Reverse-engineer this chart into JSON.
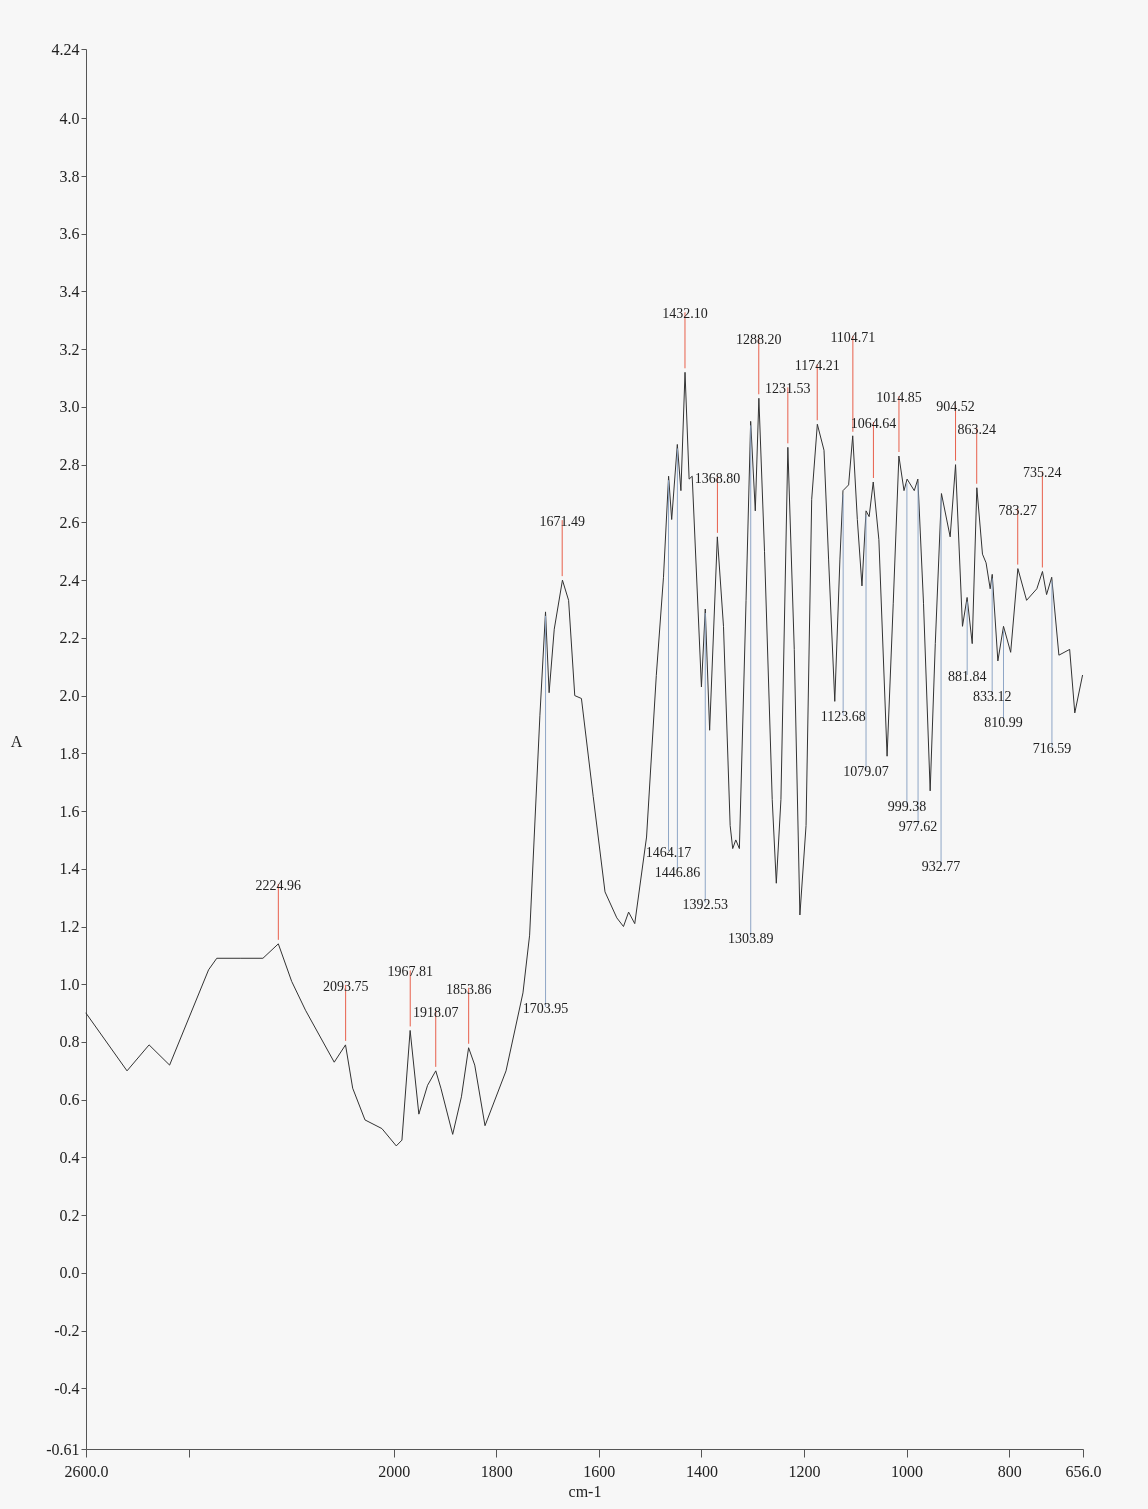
{
  "chart_data": {
    "type": "line",
    "xlabel": "cm-1",
    "ylabel": "A",
    "color": "#333333",
    "x": [
      2600,
      2520,
      2477,
      2437,
      2361,
      2345,
      2298,
      2255,
      2225,
      2199,
      2172,
      2116,
      2094,
      2080,
      2056,
      2023,
      1995,
      1984,
      1968,
      1951,
      1934,
      1918,
      1908,
      1885,
      1868,
      1854,
      1842,
      1822,
      1781,
      1748,
      1735,
      1715,
      1704,
      1697,
      1687,
      1671,
      1659,
      1647,
      1634,
      1611,
      1588,
      1565,
      1552,
      1542,
      1530,
      1507,
      1488,
      1474,
      1464,
      1458,
      1447,
      1440,
      1432,
      1424,
      1418,
      1400,
      1392.5,
      1384,
      1369,
      1357,
      1344,
      1339,
      1333,
      1326,
      1313,
      1304,
      1295,
      1288,
      1277,
      1262,
      1254,
      1245,
      1231.5,
      1219,
      1208,
      1196,
      1185,
      1174,
      1161,
      1152,
      1140,
      1130,
      1124,
      1113,
      1105,
      1096,
      1087,
      1079,
      1073,
      1065,
      1054,
      1038,
      1026,
      1015,
      1005,
      999,
      985,
      978,
      967,
      954,
      944,
      932,
      915,
      904.5,
      891,
      882,
      872,
      863,
      852,
      845,
      837,
      833,
      822,
      811,
      797,
      783,
      766,
      746,
      735,
      727,
      717,
      703,
      682,
      672,
      657
    ],
    "values": [
      0.9,
      0.7,
      0.79,
      0.72,
      1.05,
      1.09,
      1.09,
      1.09,
      1.14,
      1.01,
      0.91,
      0.73,
      0.79,
      0.64,
      0.53,
      0.5,
      0.44,
      0.46,
      0.84,
      0.55,
      0.65,
      0.7,
      0.64,
      0.48,
      0.61,
      0.78,
      0.72,
      0.51,
      0.7,
      0.97,
      1.17,
      1.93,
      2.29,
      2.01,
      2.23,
      2.4,
      2.33,
      2.0,
      1.99,
      1.65,
      1.32,
      1.23,
      1.2,
      1.25,
      1.21,
      1.51,
      2.07,
      2.41,
      2.76,
      2.61,
      2.87,
      2.71,
      3.12,
      2.75,
      2.76,
      2.03,
      2.3,
      1.88,
      2.55,
      2.24,
      1.55,
      1.47,
      1.5,
      1.47,
      2.33,
      2.95,
      2.64,
      3.03,
      2.5,
      1.64,
      1.35,
      1.64,
      2.86,
      2.16,
      1.24,
      1.55,
      2.68,
      2.94,
      2.85,
      2.47,
      1.98,
      2.47,
      2.71,
      2.73,
      2.9,
      2.61,
      2.38,
      2.64,
      2.62,
      2.74,
      2.54,
      1.79,
      2.32,
      2.83,
      2.71,
      2.75,
      2.71,
      2.75,
      2.32,
      1.67,
      2.18,
      2.7,
      2.55,
      2.8,
      2.24,
      2.34,
      2.18,
      2.72,
      2.49,
      2.46,
      2.37,
      2.42,
      2.12,
      2.24,
      2.15,
      2.44,
      2.33,
      2.37,
      2.43,
      2.35,
      2.41,
      2.14,
      2.16,
      1.94,
      2.07
    ],
    "xlim": [
      2600,
      656
    ],
    "ylim": [
      -0.61,
      4.24
    ],
    "xticks": [
      {
        "value": 2600,
        "label": "2600.0"
      },
      {
        "value": 2400,
        "label": null
      },
      2000,
      1800,
      1600,
      1400,
      1200,
      1000,
      800,
      {
        "value": 656,
        "label": "656.0"
      }
    ],
    "yticks": [
      {
        "value": -0.61,
        "label": "-0.61"
      },
      {
        "value": -0.4,
        "label": "-0.4"
      },
      {
        "value": -0.2,
        "label": "-0.2"
      },
      {
        "value": 0,
        "label": "0.0"
      },
      {
        "value": 0.2,
        "label": "0.2"
      },
      {
        "value": 0.4,
        "label": "0.4"
      },
      {
        "value": 0.6,
        "label": "0.6"
      },
      {
        "value": 0.8,
        "label": "0.8"
      },
      {
        "value": 1,
        "label": "1.0"
      },
      {
        "value": 1.2,
        "label": "1.2"
      },
      {
        "value": 1.4,
        "label": "1.4"
      },
      {
        "value": 1.6,
        "label": "1.6"
      },
      {
        "value": 1.8,
        "label": "1.8"
      },
      {
        "value": 2,
        "label": "2.0"
      },
      {
        "value": 2.2,
        "label": "2.2"
      },
      {
        "value": 2.4,
        "label": "2.4"
      },
      {
        "value": 2.6,
        "label": "2.6"
      },
      {
        "value": 2.8,
        "label": "2.8"
      },
      {
        "value": 3,
        "label": "3.0"
      },
      {
        "value": 3.2,
        "label": "3.2"
      },
      {
        "value": 3.4,
        "label": "3.4"
      },
      {
        "value": 3.6,
        "label": "3.6"
      },
      {
        "value": 3.8,
        "label": "3.8"
      },
      {
        "value": 4,
        "label": "4.0"
      },
      {
        "value": 4.24,
        "label": "4.24"
      }
    ],
    "annotations": [
      {
        "text": "2224.96",
        "x": 2224.96,
        "y": 1.14
      },
      {
        "text": "2093.75",
        "x": 2093.75,
        "y": 0.79
      },
      {
        "text": "1967.81",
        "x": 1967.81,
        "y": 0.84
      },
      {
        "text": "1918.07",
        "x": 1918.07,
        "y": 0.7
      },
      {
        "text": "1853.86",
        "x": 1853.86,
        "y": 0.78
      },
      {
        "text": "1703.95",
        "x": 1703.95,
        "y": 2.29
      },
      {
        "text": "1671.49",
        "x": 1671.49,
        "y": 2.4
      },
      {
        "text": "1464.17",
        "x": 1464.17,
        "y": 2.76
      },
      {
        "text": "1446.86",
        "x": 1446.86,
        "y": 2.87
      },
      {
        "text": "1432.10",
        "x": 1432.1,
        "y": 3.12
      },
      {
        "text": "1392.53",
        "x": 1392.53,
        "y": 2.3
      },
      {
        "text": "1368.80",
        "x": 1368.8,
        "y": 2.55
      },
      {
        "text": "1303.89",
        "x": 1303.89,
        "y": 2.95
      },
      {
        "text": "1288.20",
        "x": 1288.2,
        "y": 3.03
      },
      {
        "text": "1231.53",
        "x": 1231.53,
        "y": 2.86
      },
      {
        "text": "1174.21",
        "x": 1174.21,
        "y": 2.94
      },
      {
        "text": "1123.68",
        "x": 1123.68,
        "y": 2.71
      },
      {
        "text": "1104.71",
        "x": 1104.71,
        "y": 2.9
      },
      {
        "text": "1079.07",
        "x": 1079.07,
        "y": 2.64
      },
      {
        "text": "1064.64",
        "x": 1064.64,
        "y": 2.74
      },
      {
        "text": "1014.85",
        "x": 1014.85,
        "y": 2.83
      },
      {
        "text": "999.38",
        "x": 999.38,
        "y": 2.75
      },
      {
        "text": "977.62",
        "x": 977.62,
        "y": 2.75
      },
      {
        "text": "932.77",
        "x": 932.77,
        "y": 2.7
      },
      {
        "text": "904.52",
        "x": 904.52,
        "y": 2.8
      },
      {
        "text": "881.84",
        "x": 881.84,
        "y": 2.34
      },
      {
        "text": "863.24",
        "x": 863.24,
        "y": 2.72
      },
      {
        "text": "833.12",
        "x": 833.12,
        "y": 2.42
      },
      {
        "text": "810.99",
        "x": 810.99,
        "y": 2.24
      },
      {
        "text": "783.27",
        "x": 783.27,
        "y": 2.44
      },
      {
        "text": "735.24",
        "x": 735.24,
        "y": 2.43
      },
      {
        "text": "716.59",
        "x": 716.59,
        "y": 2.41
      }
    ]
  }
}
